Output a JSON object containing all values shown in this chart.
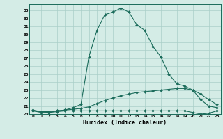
{
  "xlabel": "Humidex (Indice chaleur)",
  "background_color": "#d4ece6",
  "grid_color": "#aacfc8",
  "line_color": "#1a6b5a",
  "xlim": [
    -0.5,
    23.5
  ],
  "ylim": [
    20,
    33.8
  ],
  "xticks": [
    0,
    1,
    2,
    3,
    4,
    5,
    6,
    7,
    8,
    9,
    10,
    11,
    12,
    13,
    14,
    15,
    16,
    17,
    18,
    19,
    20,
    21,
    22,
    23
  ],
  "yticks": [
    20,
    21,
    22,
    23,
    24,
    25,
    26,
    27,
    28,
    29,
    30,
    31,
    32,
    33
  ],
  "hours": [
    0,
    1,
    2,
    3,
    4,
    5,
    6,
    7,
    8,
    9,
    10,
    11,
    12,
    13,
    14,
    15,
    16,
    17,
    18,
    19,
    20,
    21,
    22,
    23
  ],
  "line1": [
    20.5,
    20.3,
    20.2,
    20.4,
    20.5,
    20.8,
    21.2,
    27.2,
    30.5,
    32.5,
    32.8,
    33.3,
    32.8,
    31.2,
    30.5,
    28.5,
    27.2,
    25.0,
    23.8,
    23.5,
    23.0,
    21.8,
    21.0,
    20.8
  ],
  "line2": [
    20.4,
    20.3,
    20.3,
    20.4,
    20.5,
    20.6,
    20.7,
    20.9,
    21.3,
    21.7,
    22.0,
    22.3,
    22.5,
    22.7,
    22.8,
    22.9,
    23.0,
    23.1,
    23.2,
    23.2,
    23.0,
    22.5,
    21.8,
    21.2
  ],
  "line3": [
    20.4,
    20.2,
    20.2,
    20.3,
    20.4,
    20.4,
    20.4,
    20.4,
    20.4,
    20.4,
    20.4,
    20.4,
    20.4,
    20.4,
    20.4,
    20.4,
    20.4,
    20.4,
    20.4,
    20.4,
    20.2,
    20.0,
    20.1,
    20.4
  ]
}
